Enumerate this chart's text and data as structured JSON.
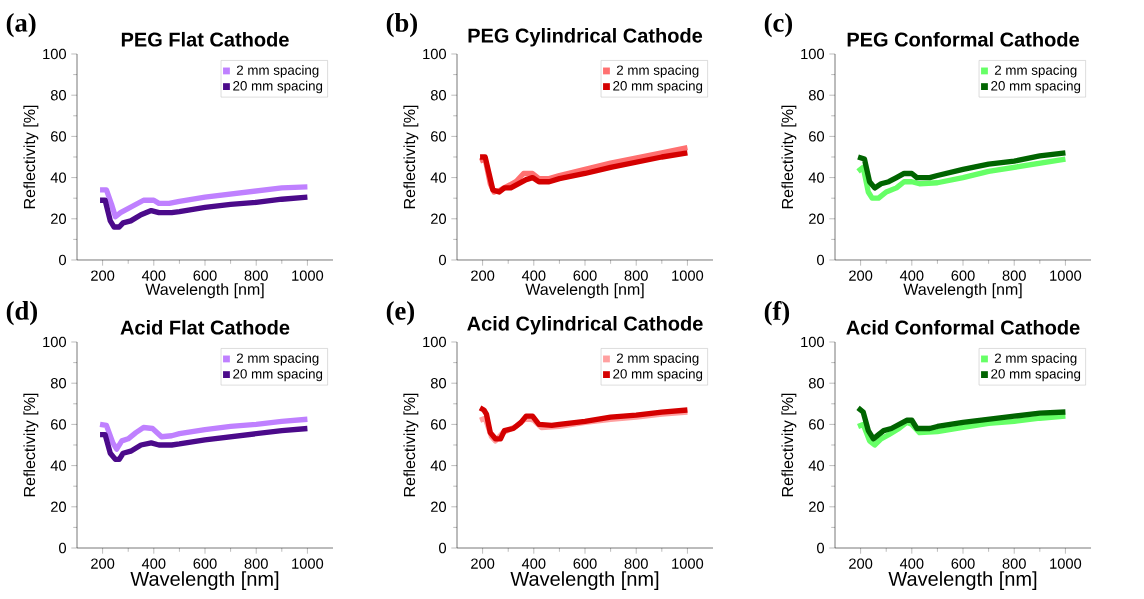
{
  "chart_data": [
    {
      "type": "line",
      "title": "PEG Flat Cathode",
      "annotations": [
        "(a)"
      ],
      "xlabel": "Wavelength [nm]",
      "ylabel": "Reflectivity [%]",
      "xlim": [
        100,
        1100
      ],
      "xticks": [
        200,
        400,
        600,
        800,
        1000
      ],
      "ylim": [
        0,
        100
      ],
      "yticks": [
        0,
        20,
        40,
        60,
        80,
        100
      ],
      "legend": "top right",
      "series": [
        {
          "name": "2 mm spacing",
          "color": "#bf80ff",
          "x": [
            190,
            215,
            235,
            250,
            270,
            300,
            330,
            360,
            400,
            420,
            460,
            500,
            600,
            700,
            800,
            900,
            1000
          ],
          "values": [
            34,
            34,
            27,
            21,
            23,
            25,
            27,
            29,
            29,
            27.5,
            27.5,
            28.5,
            30.5,
            32,
            33.5,
            35,
            35.5
          ]
        },
        {
          "name": "20 mm spacing",
          "color": "#4b0a8a",
          "x": [
            190,
            210,
            230,
            245,
            265,
            280,
            310,
            350,
            390,
            420,
            470,
            500,
            600,
            700,
            800,
            900,
            1000
          ],
          "values": [
            29,
            29,
            19,
            16,
            16,
            18,
            19,
            22,
            24,
            23,
            23,
            23.5,
            25.5,
            27,
            28,
            29.5,
            30.5
          ]
        }
      ]
    },
    {
      "type": "line",
      "title": "PEG Cylindrical Cathode",
      "annotations": [
        "(b)"
      ],
      "xlabel": "Wavelength [nm]",
      "ylabel": "Reflectivity [%]",
      "xlim": [
        100,
        1100
      ],
      "xticks": [
        200,
        400,
        600,
        800,
        1000
      ],
      "ylim": [
        0,
        100
      ],
      "yticks": [
        0,
        20,
        40,
        60,
        80,
        100
      ],
      "legend": "top right",
      "series": [
        {
          "name": "2 mm spacing",
          "color": "#ff7070",
          "x": [
            190,
            210,
            230,
            245,
            270,
            300,
            330,
            360,
            395,
            420,
            460,
            500,
            600,
            700,
            800,
            900,
            1000
          ],
          "values": [
            48,
            49,
            37,
            33,
            34,
            36,
            38,
            42,
            42,
            39.5,
            39.5,
            41,
            44,
            47,
            49.5,
            52,
            54.5
          ]
        },
        {
          "name": "20 mm spacing",
          "color": "#d40000",
          "x": [
            190,
            210,
            225,
            240,
            265,
            285,
            310,
            340,
            370,
            395,
            420,
            460,
            500,
            600,
            700,
            800,
            900,
            1000
          ],
          "values": [
            50,
            50,
            42,
            34,
            33,
            35,
            35,
            37,
            39,
            40,
            38,
            38,
            39.5,
            42,
            45,
            47.5,
            50,
            52
          ]
        }
      ]
    },
    {
      "type": "line",
      "title": "PEG Conformal Cathode",
      "annotations": [
        "(c)"
      ],
      "xlabel": "Wavelength [nm]",
      "ylabel": "Reflectivity [%]",
      "xlim": [
        100,
        1100
      ],
      "xticks": [
        200,
        400,
        600,
        800,
        1000
      ],
      "ylim": [
        0,
        100
      ],
      "yticks": [
        0,
        20,
        40,
        60,
        80,
        100
      ],
      "legend": "top right",
      "series": [
        {
          "name": "2 mm spacing",
          "color": "#66ff66",
          "x": [
            190,
            210,
            230,
            245,
            270,
            300,
            340,
            370,
            400,
            430,
            500,
            600,
            700,
            800,
            900,
            1000
          ],
          "values": [
            43,
            45,
            33,
            30,
            30,
            33,
            35,
            38,
            38,
            37,
            37.5,
            40,
            43,
            45,
            47,
            49
          ]
        },
        {
          "name": "20 mm spacing",
          "color": "#006400",
          "x": [
            190,
            215,
            235,
            255,
            280,
            310,
            340,
            370,
            400,
            420,
            470,
            500,
            600,
            700,
            800,
            900,
            1000
          ],
          "values": [
            50,
            49,
            38,
            35,
            37,
            38,
            40,
            42,
            42,
            40,
            40,
            41,
            44,
            46.5,
            48,
            50.5,
            52
          ]
        }
      ]
    },
    {
      "type": "line",
      "title": "Acid Flat Cathode",
      "annotations": [
        "(d)"
      ],
      "xlabel": "Wavelength [nm]",
      "ylabel": "Reflectivity [%]",
      "xlim": [
        100,
        1100
      ],
      "xticks": [
        200,
        400,
        600,
        800,
        1000
      ],
      "ylim": [
        0,
        100
      ],
      "yticks": [
        0,
        20,
        40,
        60,
        80,
        100
      ],
      "legend": "top right",
      "series": [
        {
          "name": "2 mm spacing",
          "color": "#bf80ff",
          "x": [
            190,
            215,
            240,
            255,
            275,
            300,
            330,
            360,
            395,
            430,
            470,
            500,
            600,
            700,
            800,
            900,
            1000
          ],
          "values": [
            60,
            59.5,
            51,
            48,
            52,
            53,
            56,
            58.5,
            58,
            54,
            54.5,
            55.5,
            57.5,
            59,
            60,
            61.5,
            62.5
          ]
        },
        {
          "name": "20 mm spacing",
          "color": "#4b0a8a",
          "x": [
            190,
            210,
            230,
            250,
            265,
            280,
            310,
            350,
            390,
            420,
            470,
            500,
            600,
            700,
            800,
            900,
            1000
          ],
          "values": [
            55,
            55,
            46,
            43,
            43,
            46,
            47,
            50,
            51,
            50,
            50,
            50.5,
            52.5,
            54,
            55.5,
            57,
            58
          ]
        }
      ]
    },
    {
      "type": "line",
      "title": "Acid Cylindrical Cathode",
      "annotations": [
        "(e)"
      ],
      "xlabel": "Wavelength [nm]",
      "ylabel": "Reflectivity [%]",
      "xlim": [
        100,
        1100
      ],
      "xticks": [
        200,
        400,
        600,
        800,
        1000
      ],
      "ylim": [
        0,
        100
      ],
      "yticks": [
        0,
        20,
        40,
        60,
        80,
        100
      ],
      "legend": "top right",
      "series": [
        {
          "name": "2 mm spacing",
          "color": "#ffa0a0",
          "x": [
            190,
            210,
            235,
            250,
            280,
            330,
            370,
            400,
            430,
            500,
            600,
            700,
            800,
            900,
            1000
          ],
          "values": [
            62,
            63,
            54,
            52,
            56,
            59,
            63,
            62,
            58.5,
            59,
            61,
            62.5,
            63.5,
            65,
            66
          ]
        },
        {
          "name": "20 mm spacing",
          "color": "#d40000",
          "x": [
            190,
            205,
            215,
            230,
            250,
            270,
            285,
            320,
            350,
            370,
            395,
            420,
            470,
            500,
            600,
            700,
            800,
            900,
            1000
          ],
          "values": [
            68,
            67,
            65,
            56,
            53,
            53,
            57,
            58,
            61,
            64,
            64,
            60,
            59.5,
            60,
            61.5,
            63.5,
            64.5,
            66,
            67
          ]
        }
      ]
    },
    {
      "type": "line",
      "title": "Acid Conformal Cathode",
      "annotations": [
        "(f)"
      ],
      "xlabel": "Wavelength [nm]",
      "ylabel": "Reflectivity [%]",
      "xlim": [
        100,
        1100
      ],
      "xticks": [
        200,
        400,
        600,
        800,
        1000
      ],
      "ylim": [
        0,
        100
      ],
      "yticks": [
        0,
        20,
        40,
        60,
        80,
        100
      ],
      "legend": "top right",
      "series": [
        {
          "name": "2 mm spacing",
          "color": "#66ff66",
          "x": [
            190,
            210,
            235,
            255,
            280,
            310,
            350,
            380,
            400,
            430,
            500,
            600,
            700,
            800,
            900,
            1000
          ],
          "values": [
            59,
            60,
            52,
            50,
            53,
            55,
            58,
            61,
            60,
            56,
            56.5,
            58.5,
            60.5,
            61.5,
            63,
            64
          ]
        },
        {
          "name": "20 mm spacing",
          "color": "#006400",
          "x": [
            190,
            210,
            230,
            250,
            270,
            290,
            320,
            350,
            380,
            400,
            420,
            470,
            500,
            600,
            700,
            800,
            900,
            1000
          ],
          "values": [
            68,
            66,
            57,
            53,
            55,
            57,
            58,
            60,
            62,
            62,
            58,
            58,
            59,
            61,
            62.5,
            64,
            65.5,
            66
          ]
        }
      ]
    }
  ]
}
